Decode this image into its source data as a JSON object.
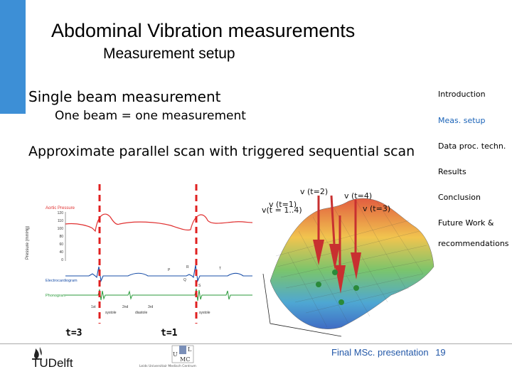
{
  "slide": {
    "title": "Abdominal Vibration measurements",
    "subtitle": "Measurement setup",
    "bullets": [
      "Single beam measurement",
      "One beam = one measurement",
      "Approximate parallel scan with triggered sequential scan"
    ]
  },
  "nav": {
    "items": [
      {
        "label": "Introduction",
        "active": false
      },
      {
        "label": "Meas. setup",
        "active": true
      },
      {
        "label": "Data proc. techn.",
        "active": false
      },
      {
        "label": "Results",
        "active": false
      },
      {
        "label": "Conclusion",
        "active": false
      },
      {
        "label": "Future Work &",
        "active": false
      },
      {
        "label": "recommendations",
        "active": false
      }
    ],
    "active_color": "#1a63b8"
  },
  "figure_left": {
    "legend_aortic": "Aortic Pressure",
    "legend_ecg": "Electrocardiogram",
    "legend_phono": "Phonogram",
    "yaxis_label": "Pressure (mmHg)",
    "y_ticks": [
      "120",
      "110",
      "100",
      "90",
      "80",
      "70",
      "60",
      "50",
      "40",
      "30",
      "20",
      "10",
      "0"
    ],
    "annotations": [
      "P",
      "T",
      "R",
      "Q",
      "S"
    ],
    "phase_labels": [
      "1st",
      "2nd",
      "3rd",
      "systole",
      "diastole",
      "systole"
    ],
    "time_labels": [
      "t=3",
      "t=1"
    ]
  },
  "figure_right": {
    "labels": [
      "v (t=2)",
      "v (t=4)",
      "v (t=1)",
      "v(t = 1..4)",
      "v (t=3)"
    ]
  },
  "footer": {
    "page_text": "Final MSc. presentation",
    "page_number": "19",
    "logo_tudelft": "TUDelft",
    "logo_lumc_line1": "L",
    "logo_lumc_line2": "U",
    "logo_lumc_line3": "MC",
    "logo_lumc_sub": "Leids Universitair Medisch Centrum"
  },
  "colors": {
    "accent": "#3d8fd6",
    "dashed_line": "#e02020",
    "aortic": "#e03030",
    "ecg": "#1a4fa8",
    "phono": "#2a9a3a"
  }
}
